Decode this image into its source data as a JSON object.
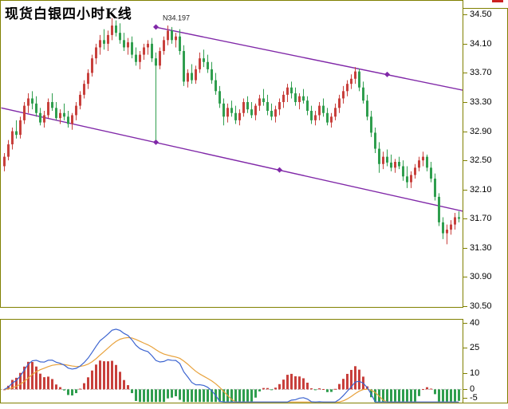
{
  "title": "现货白银四小时K线",
  "colors": {
    "up": "#c8403c",
    "down": "#2f9e4e",
    "channel": "#8028a8",
    "dif_line": "#3c64d0",
    "dea_line": "#e8a23c",
    "border": "#808000",
    "corner_mark": "#cc2222"
  },
  "chart_data": {
    "type": "candlestick",
    "title": "现货白银四小时K线",
    "y_axis": {
      "ticks": [
        34.5,
        34.1,
        33.7,
        33.3,
        32.9,
        32.5,
        32.1,
        31.7,
        31.3,
        30.9,
        30.5
      ],
      "range": [
        30.38,
        34.58
      ],
      "grid": false
    },
    "annotation": {
      "text": "N34.197",
      "i": 40,
      "price": 34.42
    },
    "trendlines": [
      {
        "name": "upper-channel",
        "i1": 38,
        "p1": 34.33,
        "i2": 115.5,
        "p2": 33.46,
        "markers": [
          38,
          96
        ]
      },
      {
        "name": "lower-channel",
        "i1": -0.5,
        "p1": 33.22,
        "i2": 115.5,
        "p2": 31.8,
        "markers": [
          38,
          69
        ]
      }
    ],
    "candles": [
      [
        32.42,
        32.6,
        32.35,
        32.55
      ],
      [
        32.55,
        32.78,
        32.5,
        32.72
      ],
      [
        32.72,
        32.95,
        32.65,
        32.9
      ],
      [
        32.9,
        33.05,
        32.8,
        32.85
      ],
      [
        32.85,
        33.1,
        32.8,
        33.05
      ],
      [
        33.05,
        33.3,
        33.0,
        33.25
      ],
      [
        33.25,
        33.42,
        33.15,
        33.35
      ],
      [
        33.35,
        33.45,
        33.2,
        33.28
      ],
      [
        33.28,
        33.38,
        33.1,
        33.15
      ],
      [
        33.15,
        33.22,
        32.98,
        33.02
      ],
      [
        33.02,
        33.18,
        32.95,
        33.12
      ],
      [
        33.12,
        33.35,
        33.08,
        33.3
      ],
      [
        33.3,
        33.42,
        33.18,
        33.22
      ],
      [
        33.22,
        33.3,
        33.05,
        33.08
      ],
      [
        33.08,
        33.2,
        33.0,
        33.15
      ],
      [
        33.15,
        33.28,
        33.05,
        33.1
      ],
      [
        33.1,
        33.18,
        32.95,
        33.0
      ],
      [
        33.0,
        33.15,
        32.92,
        33.12
      ],
      [
        33.12,
        33.3,
        33.05,
        33.25
      ],
      [
        33.25,
        33.45,
        33.2,
        33.4
      ],
      [
        33.4,
        33.6,
        33.35,
        33.55
      ],
      [
        33.55,
        33.75,
        33.48,
        33.7
      ],
      [
        33.7,
        33.95,
        33.65,
        33.9
      ],
      [
        33.9,
        34.1,
        33.82,
        34.05
      ],
      [
        34.05,
        34.22,
        33.95,
        34.15
      ],
      [
        34.15,
        34.3,
        34.02,
        34.1
      ],
      [
        34.1,
        34.28,
        34.0,
        34.22
      ],
      [
        34.22,
        34.45,
        34.15,
        34.35
      ],
      [
        34.35,
        34.42,
        34.2,
        34.25
      ],
      [
        34.25,
        34.38,
        34.1,
        34.15
      ],
      [
        34.15,
        34.25,
        34.0,
        34.05
      ],
      [
        34.05,
        34.18,
        33.95,
        34.12
      ],
      [
        34.12,
        34.2,
        33.9,
        33.95
      ],
      [
        33.95,
        34.05,
        33.8,
        33.85
      ],
      [
        33.85,
        34.0,
        33.75,
        33.95
      ],
      [
        33.95,
        34.1,
        33.88,
        34.05
      ],
      [
        34.05,
        34.15,
        33.95,
        34.1
      ],
      [
        34.1,
        34.18,
        33.85,
        33.9
      ],
      [
        33.9,
        33.98,
        32.78,
        33.8
      ],
      [
        33.8,
        34.05,
        33.75,
        34.0
      ],
      [
        34.0,
        34.2,
        33.95,
        34.15
      ],
      [
        34.15,
        34.35,
        34.08,
        34.28
      ],
      [
        34.28,
        34.33,
        34.1,
        34.15
      ],
      [
        34.15,
        34.25,
        34.05,
        34.2
      ],
      [
        34.2,
        34.3,
        33.95,
        34.0
      ],
      [
        34.0,
        34.08,
        33.52,
        33.58
      ],
      [
        33.58,
        33.75,
        33.5,
        33.7
      ],
      [
        33.7,
        33.82,
        33.55,
        33.6
      ],
      [
        33.6,
        33.8,
        33.55,
        33.75
      ],
      [
        33.75,
        33.98,
        33.7,
        33.9
      ],
      [
        33.9,
        34.02,
        33.78,
        33.85
      ],
      [
        33.85,
        33.95,
        33.7,
        33.75
      ],
      [
        33.75,
        33.85,
        33.55,
        33.6
      ],
      [
        33.6,
        33.7,
        33.4,
        33.45
      ],
      [
        33.45,
        33.52,
        33.22,
        33.28
      ],
      [
        33.28,
        33.35,
        32.98,
        33.1
      ],
      [
        33.1,
        33.28,
        33.02,
        33.22
      ],
      [
        33.22,
        33.32,
        33.1,
        33.15
      ],
      [
        33.15,
        33.25,
        33.0,
        33.05
      ],
      [
        33.05,
        33.2,
        32.98,
        33.15
      ],
      [
        33.15,
        33.35,
        33.1,
        33.3
      ],
      [
        33.3,
        33.38,
        33.15,
        33.2
      ],
      [
        33.2,
        33.3,
        33.08,
        33.12
      ],
      [
        33.12,
        33.28,
        33.05,
        33.25
      ],
      [
        33.25,
        33.4,
        33.18,
        33.35
      ],
      [
        33.35,
        33.48,
        33.25,
        33.3
      ],
      [
        33.3,
        33.4,
        33.12,
        33.18
      ],
      [
        33.18,
        33.28,
        33.05,
        33.1
      ],
      [
        33.1,
        33.25,
        33.02,
        33.2
      ],
      [
        33.2,
        33.35,
        33.12,
        33.3
      ],
      [
        33.3,
        33.45,
        33.22,
        33.4
      ],
      [
        33.4,
        33.55,
        33.3,
        33.5
      ],
      [
        33.5,
        33.58,
        33.35,
        33.42
      ],
      [
        33.42,
        33.5,
        33.25,
        33.3
      ],
      [
        33.3,
        33.42,
        33.2,
        33.38
      ],
      [
        33.38,
        33.48,
        33.28,
        33.32
      ],
      [
        33.32,
        33.38,
        33.12,
        33.18
      ],
      [
        33.18,
        33.25,
        33.0,
        33.05
      ],
      [
        33.05,
        33.18,
        32.98,
        33.12
      ],
      [
        33.12,
        33.3,
        33.05,
        33.25
      ],
      [
        33.25,
        33.35,
        33.1,
        33.15
      ],
      [
        33.15,
        33.22,
        32.98,
        33.02
      ],
      [
        33.02,
        33.15,
        32.95,
        33.1
      ],
      [
        33.1,
        33.28,
        33.05,
        33.22
      ],
      [
        33.22,
        33.4,
        33.15,
        33.35
      ],
      [
        33.35,
        33.52,
        33.28,
        33.45
      ],
      [
        33.45,
        33.6,
        33.38,
        33.55
      ],
      [
        33.55,
        33.68,
        33.48,
        33.62
      ],
      [
        33.62,
        33.78,
        33.55,
        33.72
      ],
      [
        33.72,
        33.76,
        33.45,
        33.5
      ],
      [
        33.5,
        33.58,
        33.28,
        33.32
      ],
      [
        33.32,
        33.4,
        33.05,
        33.1
      ],
      [
        33.1,
        33.18,
        32.82,
        32.88
      ],
      [
        32.88,
        32.95,
        32.6,
        32.66
      ],
      [
        32.66,
        32.75,
        32.33,
        32.45
      ],
      [
        32.45,
        32.62,
        32.38,
        32.55
      ],
      [
        32.55,
        32.65,
        32.42,
        32.47
      ],
      [
        32.47,
        32.58,
        32.35,
        32.4
      ],
      [
        32.4,
        32.52,
        32.33,
        32.48
      ],
      [
        32.48,
        32.55,
        32.38,
        32.42
      ],
      [
        32.42,
        32.5,
        32.22,
        32.28
      ],
      [
        32.28,
        32.42,
        32.12,
        32.2
      ],
      [
        32.2,
        32.35,
        32.12,
        32.3
      ],
      [
        32.3,
        32.45,
        32.25,
        32.4
      ],
      [
        32.4,
        32.55,
        32.35,
        32.5
      ],
      [
        32.5,
        32.62,
        32.42,
        32.55
      ],
      [
        32.55,
        32.58,
        32.35,
        32.4
      ],
      [
        32.4,
        32.48,
        32.2,
        32.25
      ],
      [
        32.25,
        32.32,
        31.95,
        32.0
      ],
      [
        32.0,
        32.05,
        31.6,
        31.65
      ],
      [
        31.65,
        31.72,
        31.42,
        31.5
      ],
      [
        31.5,
        31.62,
        31.35,
        31.55
      ],
      [
        31.55,
        31.68,
        31.48,
        31.62
      ],
      [
        31.62,
        31.78,
        31.55,
        31.72
      ],
      [
        31.72,
        31.8,
        31.65,
        31.7
      ]
    ],
    "indicator": {
      "type": "MACD",
      "params": [
        12,
        26,
        9
      ],
      "scale": 100,
      "ticks": [
        40,
        25,
        10,
        0,
        -5
      ],
      "range": [
        -8,
        42
      ]
    }
  }
}
